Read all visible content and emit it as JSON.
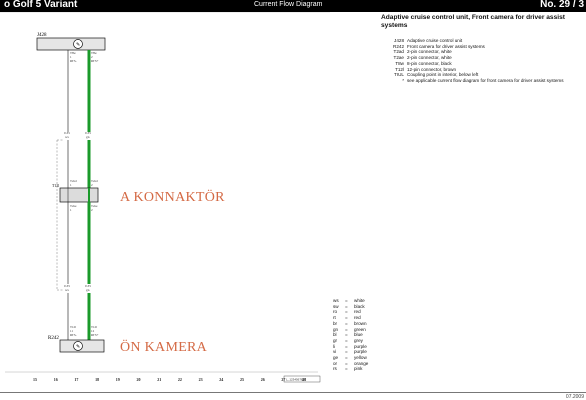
{
  "header": {
    "left": "o Golf 5 Variant",
    "center": "Current Flow Diagram",
    "right": "No. 29 / 3"
  },
  "title": "Adaptive cruise control unit, Front camera for driver assist systems",
  "legend": [
    {
      "code": "J428",
      "desc": "Adaptive cruise control unit"
    },
    {
      "code": "R242",
      "desc": "Front camera for driver assist systems"
    },
    {
      "code": "T2ad",
      "desc": "2-pin connector, white"
    },
    {
      "code": "T2ae",
      "desc": "2-pin connector, white"
    },
    {
      "code": "T8w",
      "desc": "8-pin connector, black"
    },
    {
      "code": "T12l",
      "desc": "12-pin connector, brown"
    },
    {
      "code": "TIUL",
      "desc": "Coupling point in interior, below left"
    },
    {
      "code": "*",
      "desc": "see applicable current flow diagram for front camera for driver assist systems"
    }
  ],
  "colors": [
    {
      "abbr": "ws",
      "name": "white"
    },
    {
      "abbr": "sw",
      "name": "black"
    },
    {
      "abbr": "ro",
      "name": "red"
    },
    {
      "abbr": "rt",
      "name": "red"
    },
    {
      "abbr": "br",
      "name": "brown"
    },
    {
      "abbr": "gn",
      "name": "green"
    },
    {
      "abbr": "bl",
      "name": "blue"
    },
    {
      "abbr": "gr",
      "name": "grey"
    },
    {
      "abbr": "li",
      "name": "purple"
    },
    {
      "abbr": "vi",
      "name": "purple"
    },
    {
      "abbr": "ge",
      "name": "yellow"
    },
    {
      "abbr": "or",
      "name": "orange"
    },
    {
      "abbr": "rs",
      "name": "pink"
    }
  ],
  "annotations": {
    "connector": "A KONNAKTÖR",
    "camera": "ÖN KAMERA"
  },
  "diagram": {
    "top_component": "J428",
    "bottom_component": "R242",
    "coupling": "T12l",
    "top_pins": [
      "T8w",
      "1",
      "T2ad",
      "1",
      "T8w",
      "2"
    ],
    "top_wire_left": "0.35 ws",
    "top_wire_right": "0.35 gn",
    "mid_wire_left": "0.35 ws",
    "mid_wire_right": "0.35 gn",
    "mid_pins": [
      "T2ad",
      "T2ad",
      "1",
      "2",
      "T2ae",
      "T2ae"
    ],
    "bottom_pins": [
      "T12l",
      "T12l",
      "RTS+"
    ],
    "ruler": [
      "15",
      "16",
      "17",
      "18",
      "19",
      "20",
      "21",
      "22",
      "23",
      "24",
      "25",
      "26",
      "27",
      "28"
    ],
    "accent_color": "#1a9a2a",
    "footnote": "L_1234567890"
  },
  "page_code": "07.2009"
}
